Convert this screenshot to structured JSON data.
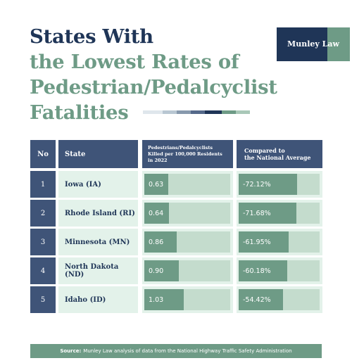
{
  "title_line1": "States With",
  "title_line2": "the Lowest Rates of",
  "title_line3": "Pedestrian/Pedalcyclist",
  "title_line4": "Fatalities",
  "logo": "Munley Law",
  "colors": {
    "navy": "#1f3557",
    "header_blue": "#3f5478",
    "green": "#6e9b86",
    "light_green": "#e3f2ea",
    "track": "#c4dccd"
  },
  "table": {
    "headers": {
      "no": "No",
      "state": "State",
      "rate": "Pedestrians/Pedalcyclists Killed per 100,000 Residents in 2022",
      "compare_line1": "Compared to",
      "compare_line2": "the National Average"
    },
    "rows": [
      {
        "no": "1",
        "state": "Iowa (IA)",
        "rate": "0.63",
        "compare": "-72.12%"
      },
      {
        "no": "2",
        "state": "Rhode Island (RI)",
        "rate": "0.64",
        "compare": "-71.68%"
      },
      {
        "no": "3",
        "state": "Minnesota (MN)",
        "rate": "0.86",
        "compare": "-61.95%"
      },
      {
        "no": "4",
        "state": "North Dakota (ND)",
        "rate": "0.90",
        "compare": "-60.18%"
      },
      {
        "no": "5",
        "state": "Idaho (ID)",
        "rate": "1.03",
        "compare": "-54.42%"
      }
    ]
  },
  "footer": {
    "label": "Source:",
    "text": "Munley Law analysis of data from the National Highway Traffic Safety Administration"
  },
  "chart_data": {
    "type": "table",
    "categories": [
      "Iowa (IA)",
      "Rhode Island (RI)",
      "Minnesota (MN)",
      "North Dakota (ND)",
      "Idaho (ID)"
    ],
    "series": [
      {
        "name": "Pedestrians/Pedalcyclists Killed per 100,000 Residents in 2022",
        "values": [
          0.63,
          0.64,
          0.86,
          0.9,
          1.03
        ]
      },
      {
        "name": "Compared to the National Average",
        "values": [
          -72.12,
          -71.68,
          -61.95,
          -60.18,
          -54.42
        ]
      }
    ]
  }
}
